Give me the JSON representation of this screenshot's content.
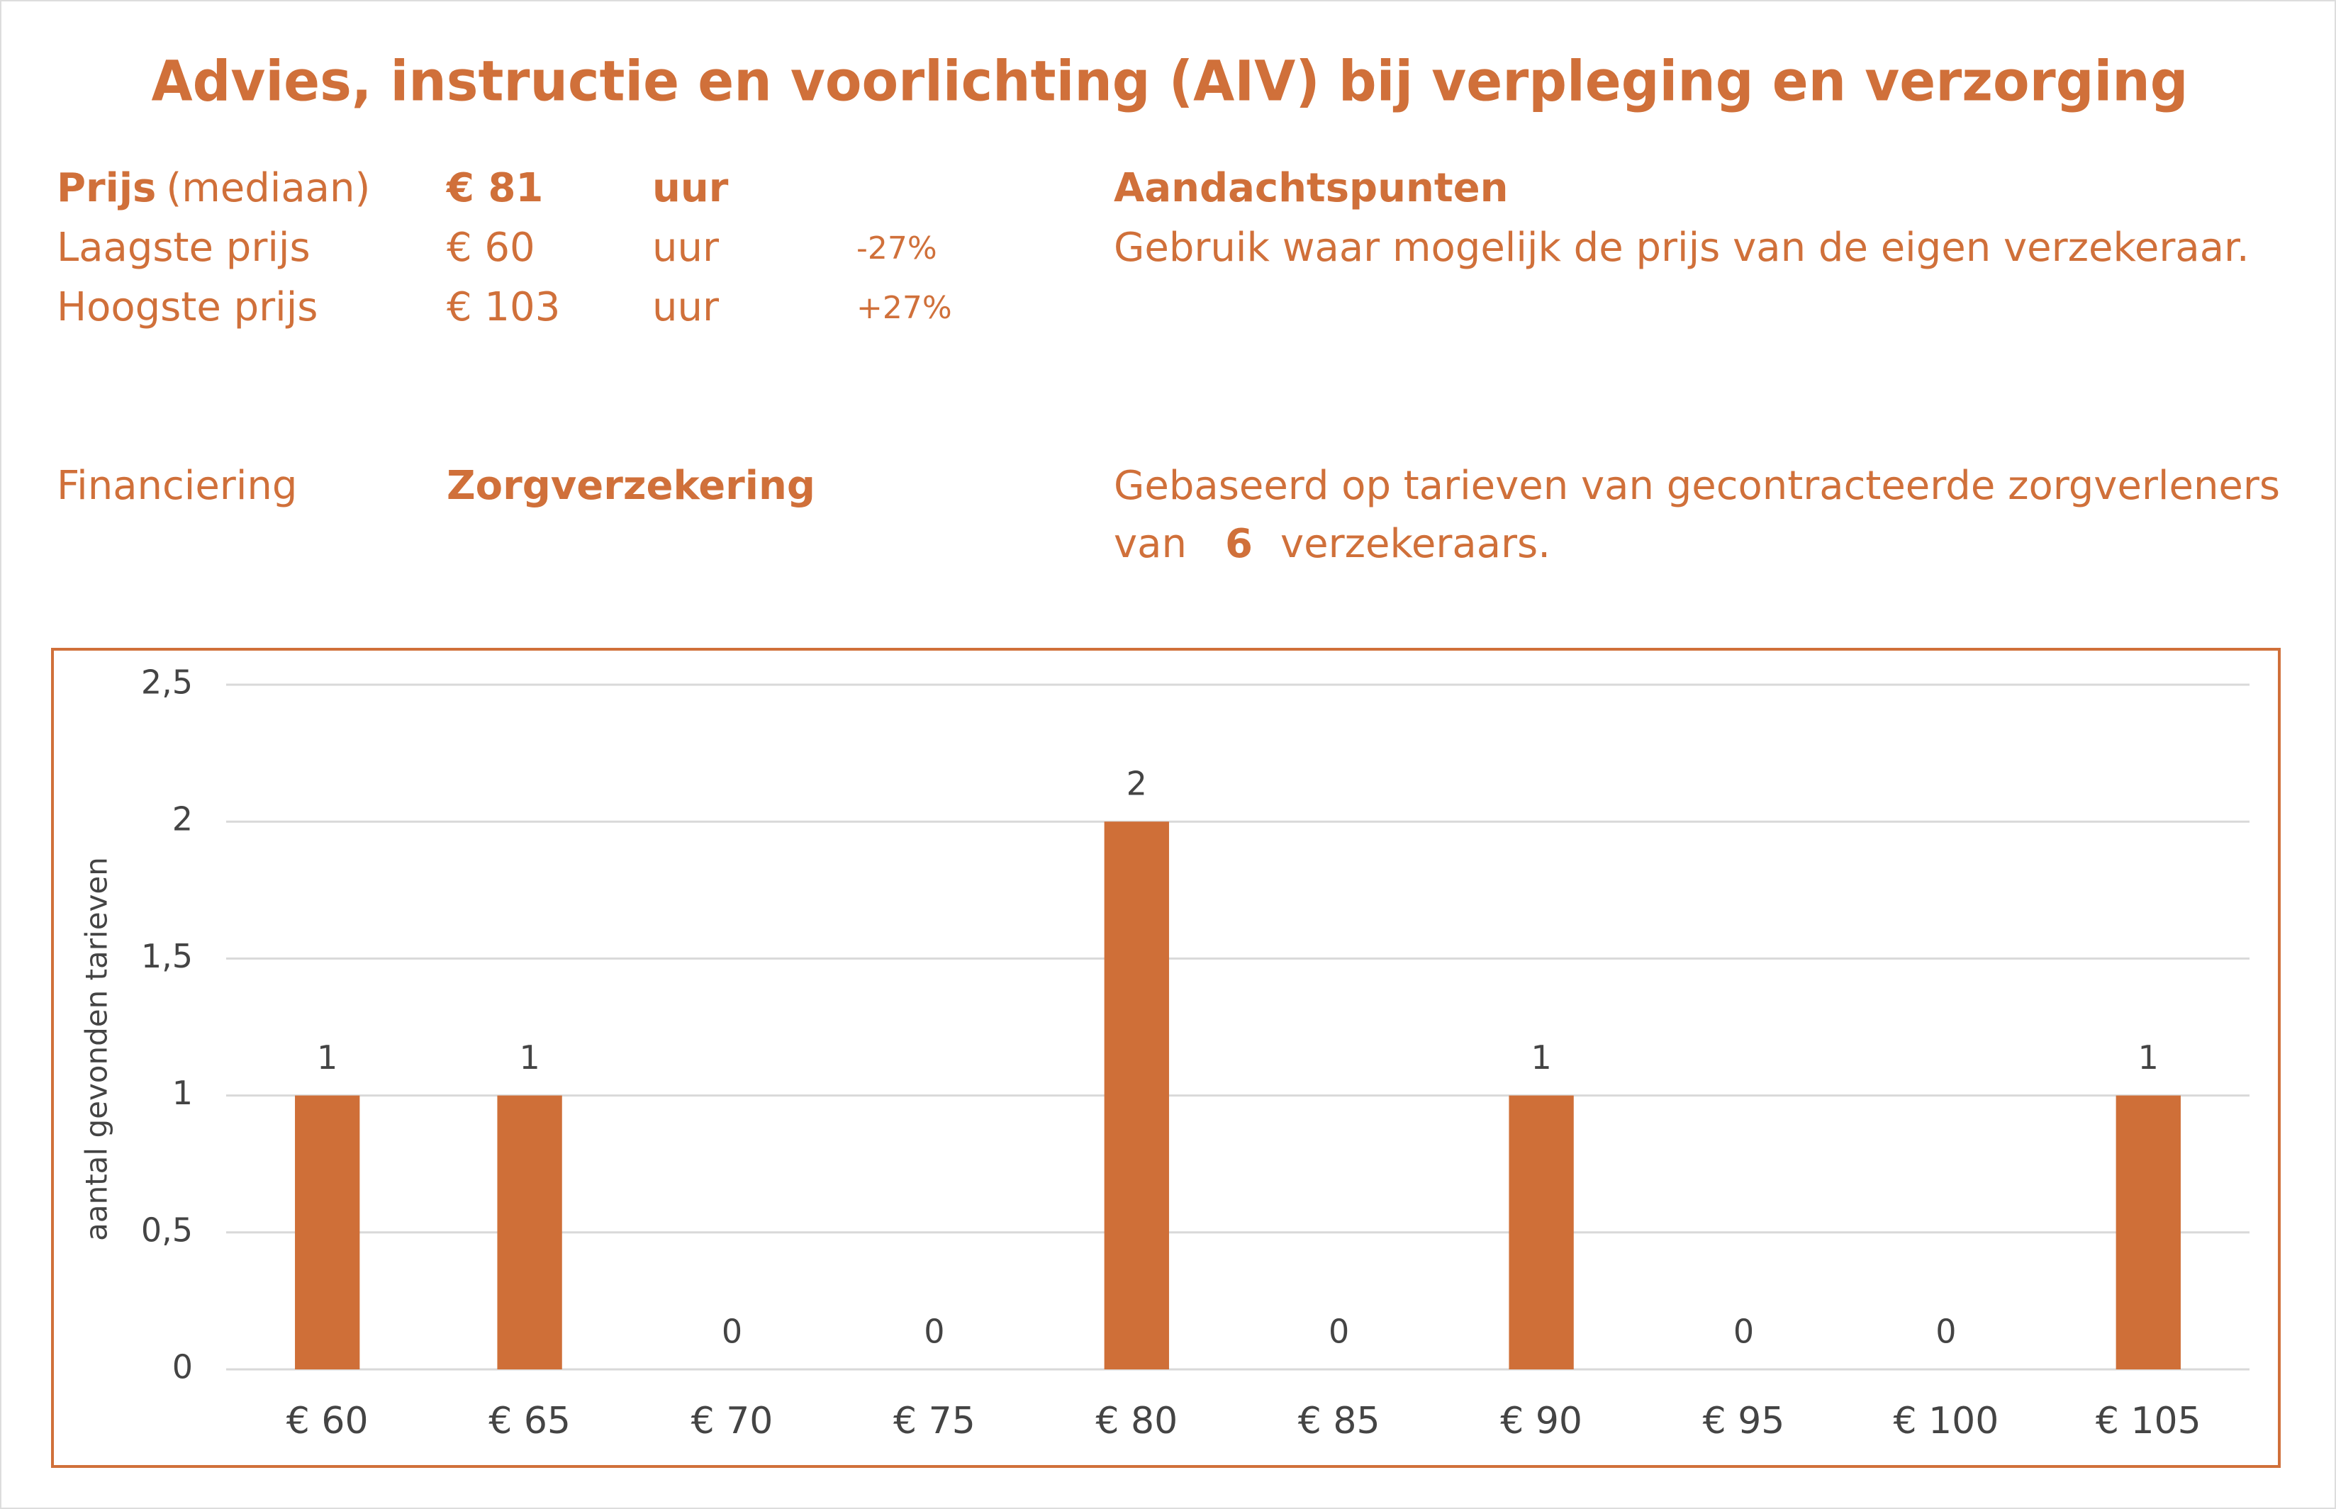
{
  "header": {
    "title": "Advies, instructie en voorlichting (AIV) bij verpleging en verzorging"
  },
  "prices": {
    "median": {
      "label": "Prijs",
      "note": "(mediaan)",
      "price": "€ 81",
      "unit": "uur"
    },
    "lowest": {
      "label": "Laagste prijs",
      "price": "€ 60",
      "unit": "uur",
      "diff": "-27%"
    },
    "highest": {
      "label": "Hoogste prijs",
      "price": "€ 103",
      "unit": "uur",
      "diff": "+27%"
    }
  },
  "notes": {
    "title": "Aandachtspunten",
    "text": "Gebruik waar mogelijk de prijs van de eigen verzekeraar."
  },
  "financing": {
    "label": "Financiering",
    "value": "Zorgverzekering"
  },
  "basis": {
    "line1": "Gebaseerd op tarieven van gecontracteerde zorgverleners",
    "pre": "van",
    "count": "6",
    "post": "verzekeraars."
  },
  "chart_data": {
    "type": "bar",
    "y_label": "aantal gevonden tarieven",
    "categories": [
      "€ 60",
      "€ 65",
      "€ 70",
      "€ 75",
      "€ 80",
      "€ 85",
      "€ 90",
      "€ 95",
      "€ 100",
      "€ 105"
    ],
    "values": [
      1,
      1,
      0,
      0,
      2,
      0,
      1,
      0,
      0,
      1
    ],
    "color": "#cf6f38",
    "ylim": [
      0,
      2.5
    ],
    "yticks": [
      0,
      {
        "value": 0.5,
        "label": "0,5"
      },
      1,
      {
        "value": 1.5,
        "label": "1,5"
      },
      2,
      {
        "value": 2.5,
        "label": "2,5"
      }
    ],
    "grid": true,
    "data_labels": true
  }
}
